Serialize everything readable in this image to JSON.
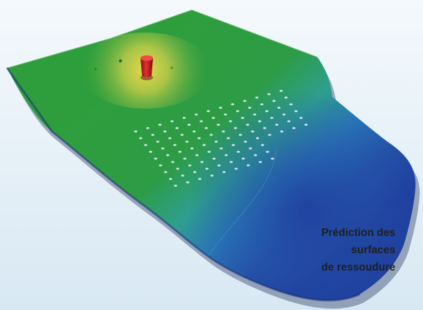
{
  "caption": {
    "lines": [
      "Prédiction des",
      "surfaces",
      "de ressoudure"
    ]
  },
  "colors": {
    "background_top": "#f4f9fc",
    "background_bottom": "#d8e8f3",
    "field_green": "#2e9e3c",
    "field_hot_yellow": "#d8d24a",
    "field_cold_blue": "#1f3f9e",
    "field_teal": "#2e9f8e",
    "injection_point": "#d11f1f",
    "caption_text": "#1f1f1f"
  }
}
